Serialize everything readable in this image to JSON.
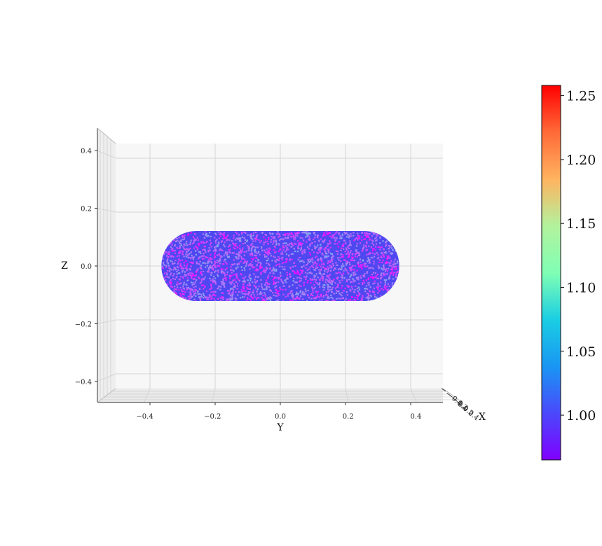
{
  "chart_data": {
    "type": "scatter",
    "projection": "3d",
    "view": "looking along X axis (Y horizontal, Z vertical)",
    "shape": "capsule (stadium) surface point cloud",
    "xlabel": "X",
    "ylabel": "Y",
    "zlabel": "Z",
    "x_ticks": [
      "−0.4",
      "−0.2",
      "0.0",
      "0.2",
      "0.4"
    ],
    "y_ticks": [
      "−0.4",
      "−0.2",
      "0.0",
      "0.2",
      "0.4"
    ],
    "z_ticks": [
      "−0.4",
      "−0.2",
      "0.0",
      "0.2",
      "0.4"
    ],
    "y_tick_values": [
      -0.4,
      -0.2,
      0.0,
      0.2,
      0.4
    ],
    "z_tick_values": [
      -0.4,
      -0.2,
      0.0,
      0.2,
      0.4
    ],
    "ylim": [
      -0.5,
      0.45
    ],
    "zlim": [
      -0.5,
      0.45
    ],
    "capsule": {
      "y_range": [
        -0.365,
        0.365
      ],
      "z_range": [
        -0.13,
        0.13
      ]
    },
    "colorbar": {
      "colormap": "rainbow",
      "range": [
        0.965,
        1.258
      ],
      "ticks": [
        "1.00",
        "1.05",
        "1.10",
        "1.15",
        "1.20",
        "1.25"
      ],
      "tick_values": [
        1.0,
        1.05,
        1.1,
        1.15,
        1.2,
        1.25
      ]
    },
    "value_distribution": {
      "min": 0.965,
      "typical": 1.0,
      "max_observed": 1.06
    },
    "grid": true,
    "pane_color": "#f7f7f7"
  }
}
